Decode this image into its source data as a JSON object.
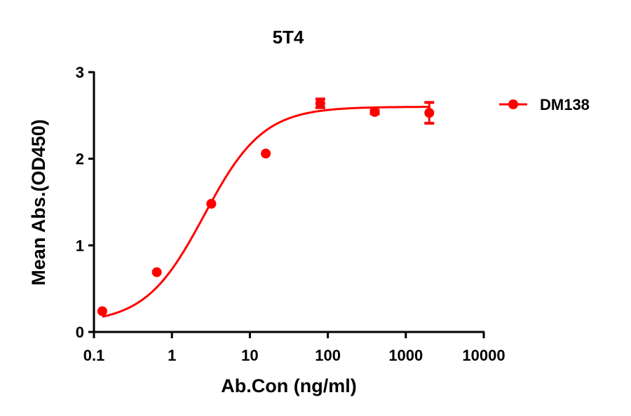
{
  "chart_data": {
    "type": "scatter",
    "title": "5T4",
    "xlabel": "Ab.Con (ng/ml)",
    "ylabel": "Mean Abs.(OD450)",
    "xscale": "log",
    "xlim": [
      0.1,
      10000
    ],
    "ylim": [
      0,
      3
    ],
    "xticks": [
      "0.1",
      "1",
      "10",
      "100",
      "1000",
      "10000"
    ],
    "yticks": [
      "0",
      "1",
      "2",
      "3"
    ],
    "grid": false,
    "legend_position": "right",
    "series": [
      {
        "name": "DM138",
        "color": "#ff0000",
        "marker": "circle",
        "fit": "4PL sigmoidal curve",
        "x": [
          0.128,
          0.64,
          3.2,
          16,
          80,
          400,
          2000
        ],
        "values": [
          0.24,
          0.69,
          1.48,
          2.06,
          2.64,
          2.54,
          2.53
        ],
        "error": [
          0,
          0,
          0,
          0,
          0.05,
          0.02,
          0.12
        ]
      }
    ],
    "fit_params": {
      "bottom": 0.1,
      "top": 2.6,
      "ec50": 2.6,
      "hill": 1.15
    }
  },
  "legend": {
    "label": "DM138"
  }
}
